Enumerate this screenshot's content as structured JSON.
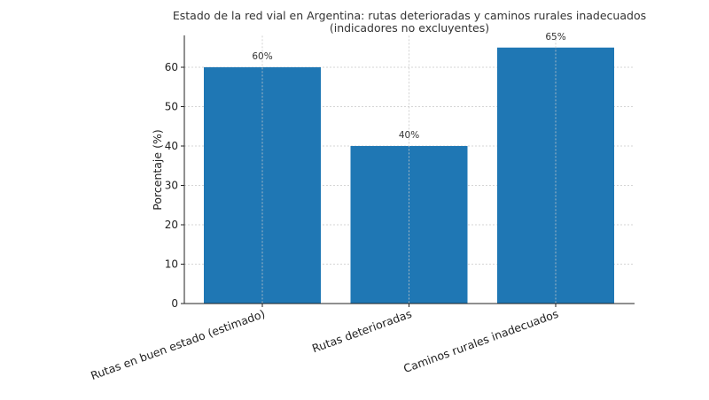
{
  "chart_data": {
    "type": "bar",
    "title_line1": "Estado de la red vial en Argentina: rutas deterioradas y caminos rurales inadecuados",
    "title_line2": "(indicadores no excluyentes)",
    "xlabel": "",
    "ylabel": "Porcentaje (%)",
    "categories": [
      "Rutas en buen estado (estimado)",
      "Rutas deterioradas",
      "Caminos rurales inadecuados"
    ],
    "values": [
      60,
      40,
      65
    ],
    "data_labels": [
      "60%",
      "40%",
      "65%"
    ],
    "ylim": [
      0,
      68
    ],
    "yticks": [
      0,
      10,
      20,
      30,
      40,
      50,
      60
    ],
    "ytick_labels": [
      "0",
      "10",
      "20",
      "30",
      "40",
      "50",
      "60"
    ],
    "grid": true,
    "bar_color": "#1f77b4"
  }
}
